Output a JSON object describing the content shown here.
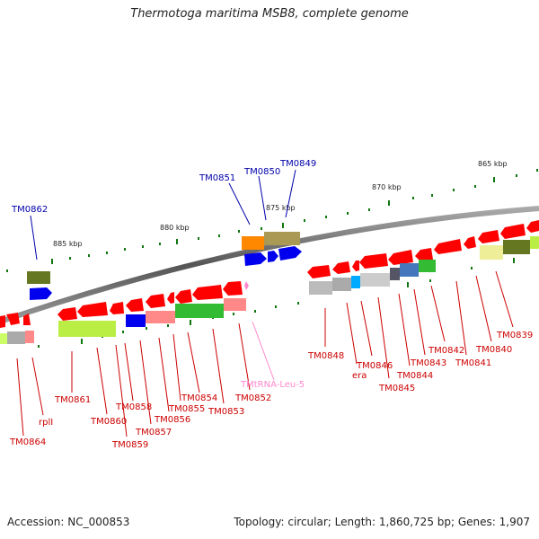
{
  "title": "Thermotoga maritima MSB8, complete genome",
  "footer": {
    "accession": "Accession: NC_000853",
    "summary": "Topology: circular; Length: 1,860,725 bp; Genes: 1,907"
  },
  "ticks": [
    "865 kbp",
    "870 kbp",
    "875 kbp",
    "880 kbp",
    "885 kbp"
  ],
  "labels_top": [
    "TM0862",
    "TM0851",
    "TM0850",
    "TM0849"
  ],
  "labels_bottom": [
    "TM0864",
    "rplI",
    "TM0861",
    "TM0860",
    "TM0859",
    "TM0858",
    "TM0857",
    "TM0856",
    "TM0855",
    "TM0854",
    "TM0853",
    "TM0852",
    "TMtRNA-Leu-5",
    "TM0848",
    "era",
    "TM0846",
    "TM0845",
    "TM0844",
    "TM0843",
    "TM0842",
    "TM0841",
    "TM0840",
    "TM0839"
  ],
  "colors": {
    "gene_red": "#ff0000",
    "gene_blue": "#0000ee",
    "label_red": "#cc0000",
    "label_blue": "#0000aa",
    "trna_pink": "#ff88cc",
    "backbone": "#777777",
    "tick_green": "#117711"
  }
}
